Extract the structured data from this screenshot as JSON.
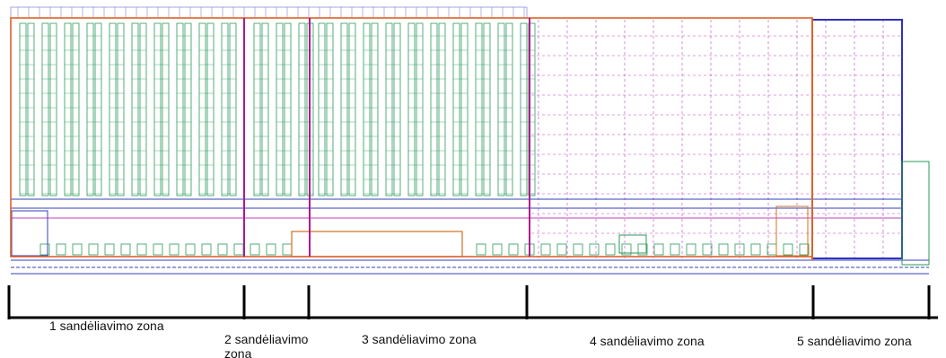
{
  "zones": [
    {
      "label": "1 sandėliavimo zona"
    },
    {
      "label": "2 sandėliavimo zona"
    },
    {
      "label": "3 sandėliavimo zona"
    },
    {
      "label": "4 sandėliavimo zona"
    },
    {
      "label": "5 sandėliavimo zona"
    }
  ]
}
